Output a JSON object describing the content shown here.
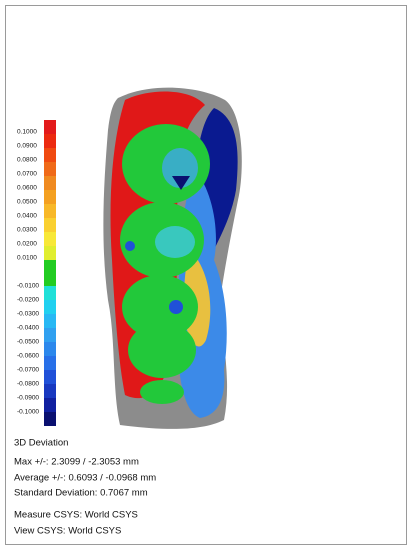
{
  "legend": {
    "bins": [
      {
        "label": "0.1000",
        "color": "#e31a1c"
      },
      {
        "label": "0.0900",
        "color": "#ec2a10"
      },
      {
        "label": "0.0800",
        "color": "#f04a10"
      },
      {
        "label": "0.0700",
        "color": "#f06a18"
      },
      {
        "label": "0.0600",
        "color": "#f08a20"
      },
      {
        "label": "0.0500",
        "color": "#f4a020"
      },
      {
        "label": "0.0400",
        "color": "#f8b828"
      },
      {
        "label": "0.0300",
        "color": "#fad030"
      },
      {
        "label": "0.0200",
        "color": "#f8e838"
      },
      {
        "label": "0.0100",
        "color": "#e0ee30"
      },
      {
        "color": "#22cc22"
      },
      {
        "label": "-0.0100",
        "color": "#20e0d8"
      },
      {
        "label": "-0.0200",
        "color": "#20d0f0"
      },
      {
        "label": "-0.0300",
        "color": "#28b8f4"
      },
      {
        "label": "-0.0400",
        "color": "#30a0f0"
      },
      {
        "label": "-0.0500",
        "color": "#2c88ec"
      },
      {
        "label": "-0.0600",
        "color": "#2870e8"
      },
      {
        "label": "-0.0700",
        "color": "#2050d8"
      },
      {
        "label": "-0.0800",
        "color": "#1838c0"
      },
      {
        "label": "-0.0900",
        "color": "#1020a0"
      },
      {
        "label": "-0.1000",
        "color": "#0a1070"
      }
    ]
  },
  "info": {
    "title": "3D Deviation",
    "lines": [
      "Max +/-: 2.3099 / -2.3053 mm",
      "Average +/-: 0.6093 / -0.0968 mm",
      "Standard Deviation: 0.7067 mm"
    ],
    "csys": [
      "Measure CSYS: World CSYS",
      "View CSYS: World CSYS"
    ]
  }
}
